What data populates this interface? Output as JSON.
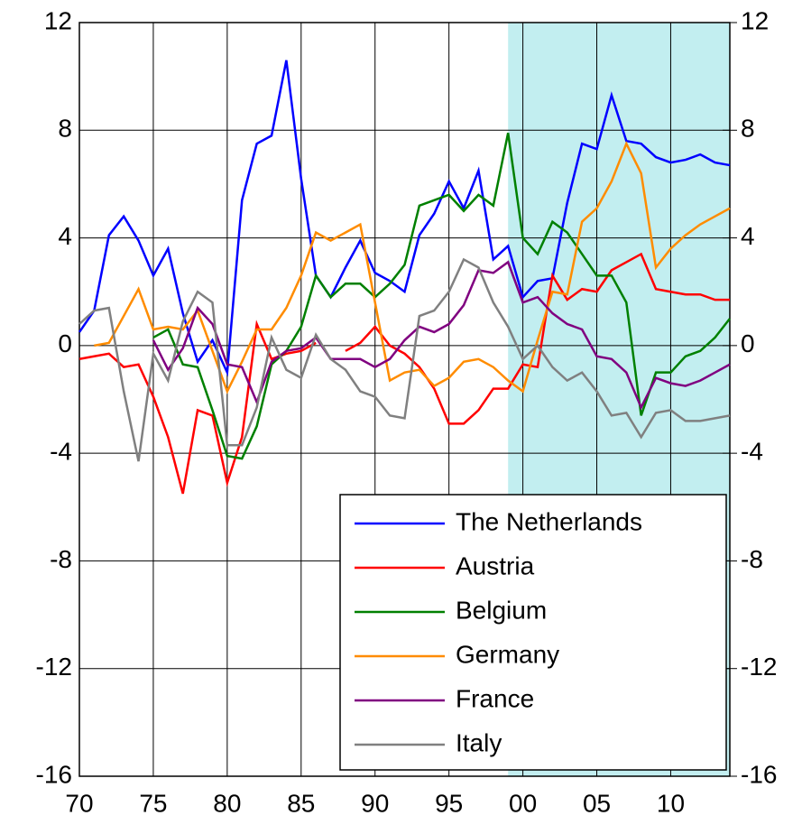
{
  "chart_data": {
    "type": "line",
    "x": [
      1970,
      1971,
      1972,
      1973,
      1974,
      1975,
      1976,
      1977,
      1978,
      1979,
      1980,
      1981,
      1982,
      1983,
      1984,
      1985,
      1986,
      1987,
      1988,
      1989,
      1990,
      1991,
      1992,
      1993,
      1994,
      1995,
      1996,
      1997,
      1998,
      1999,
      2000,
      2001,
      2002,
      2003,
      2004,
      2005,
      2006,
      2007,
      2008,
      2009,
      2010,
      2011,
      2012,
      2013,
      2014
    ],
    "series": [
      {
        "name": "The Netherlands",
        "color": "#0000ff",
        "values": [
          0.5,
          1.3,
          4.1,
          4.8,
          3.9,
          2.6,
          3.6,
          1.2,
          -0.6,
          0.2,
          -1.0,
          5.4,
          7.5,
          7.8,
          10.6,
          6.2,
          2.6,
          1.8,
          2.9,
          3.9,
          2.7,
          2.4,
          2.0,
          4.1,
          4.9,
          6.1,
          5.1,
          6.5,
          3.2,
          3.7,
          1.8,
          2.4,
          2.5,
          5.3,
          7.5,
          7.3,
          9.3,
          7.6,
          7.5,
          7.0,
          6.8,
          6.9,
          7.1,
          6.8,
          6.7
        ]
      },
      {
        "name": "Austria",
        "color": "#ff0000",
        "values": [
          -0.5,
          -0.4,
          -0.3,
          -0.8,
          -0.7,
          -1.9,
          -3.4,
          -5.5,
          -2.4,
          -2.6,
          -5.1,
          -3.4,
          0.8,
          -0.5,
          -0.3,
          -0.2,
          0.1,
          null,
          -0.2,
          0.1,
          0.7,
          0.0,
          -0.3,
          -0.8,
          -1.6,
          -2.9,
          -2.9,
          -2.4,
          -1.6,
          -1.6,
          -0.7,
          -0.8,
          2.6,
          1.7,
          2.1,
          2.0,
          2.8,
          3.1,
          3.4,
          2.1,
          2.0,
          1.9,
          1.9,
          1.7,
          1.7
        ]
      },
      {
        "name": "Belgium",
        "color": "#008000",
        "values": [
          null,
          null,
          null,
          null,
          null,
          0.3,
          0.6,
          -0.7,
          -0.8,
          -2.4,
          -4.1,
          -4.2,
          -3.0,
          -0.7,
          -0.2,
          0.7,
          2.6,
          1.8,
          2.3,
          2.3,
          1.8,
          2.3,
          3.0,
          5.2,
          5.4,
          5.6,
          5.0,
          5.6,
          5.2,
          7.9,
          4.0,
          3.4,
          4.6,
          4.2,
          3.4,
          2.6,
          2.6,
          1.6,
          -2.6,
          -1.0,
          -1.0,
          -0.4,
          -0.2,
          0.3,
          1.0
        ]
      },
      {
        "name": "Germany",
        "color": "#ff8c00",
        "values": [
          null,
          0.0,
          0.1,
          1.1,
          2.1,
          0.6,
          0.7,
          0.6,
          1.3,
          -0.2,
          -1.7,
          -0.6,
          0.6,
          0.6,
          1.4,
          2.6,
          4.2,
          3.9,
          4.2,
          4.5,
          1.6,
          -1.3,
          -1.0,
          -0.9,
          -1.5,
          -1.2,
          -0.6,
          -0.5,
          -0.8,
          -1.3,
          -1.7,
          0.2,
          2.0,
          1.9,
          4.6,
          5.1,
          6.1,
          7.5,
          6.4,
          2.9,
          3.6,
          4.1,
          4.5,
          4.8,
          5.1
        ]
      },
      {
        "name": "France",
        "color": "#800080",
        "values": [
          null,
          null,
          null,
          null,
          null,
          0.2,
          -0.9,
          -0.1,
          1.4,
          0.8,
          -0.7,
          -0.8,
          -2.1,
          -0.6,
          -0.2,
          -0.1,
          0.3,
          -0.5,
          -0.5,
          -0.5,
          -0.8,
          -0.5,
          0.2,
          0.7,
          0.5,
          0.8,
          1.5,
          2.8,
          2.7,
          3.1,
          1.6,
          1.8,
          1.2,
          0.8,
          0.6,
          -0.4,
          -0.5,
          -1.0,
          -2.3,
          -1.2,
          -1.4,
          -1.5,
          -1.3,
          -1.0,
          -0.7
        ]
      },
      {
        "name": "Italy",
        "color": "#808080",
        "values": [
          0.8,
          1.3,
          1.4,
          -1.7,
          -4.3,
          -0.3,
          -1.3,
          0.9,
          2.0,
          1.6,
          -3.7,
          -3.7,
          -2.3,
          0.3,
          -0.9,
          -1.2,
          0.4,
          -0.5,
          -0.9,
          -1.7,
          -1.9,
          -2.6,
          -2.7,
          1.1,
          1.3,
          2.0,
          3.2,
          2.9,
          1.6,
          0.7,
          -0.5,
          0.0,
          -0.8,
          -1.3,
          -1.0,
          -1.7,
          -2.6,
          -2.5,
          -3.4,
          -2.5,
          -2.4,
          -2.8,
          -2.8,
          -2.7,
          -2.6
        ]
      }
    ],
    "xlim": [
      1970,
      2014
    ],
    "xticks": [
      {
        "value": 1970,
        "label": "70"
      },
      {
        "value": 1975,
        "label": "75"
      },
      {
        "value": 1980,
        "label": "80"
      },
      {
        "value": 1985,
        "label": "85"
      },
      {
        "value": 1990,
        "label": "90"
      },
      {
        "value": 1995,
        "label": "95"
      },
      {
        "value": 2000,
        "label": "00"
      },
      {
        "value": 2005,
        "label": "05"
      },
      {
        "value": 2010,
        "label": "10"
      }
    ],
    "ylim": [
      -16,
      12
    ],
    "yticks": [
      -16,
      -12,
      -8,
      -4,
      0,
      4,
      8,
      12
    ],
    "y2lim": [
      -16,
      12
    ],
    "y2ticks": [
      -16,
      -12,
      -8,
      -4,
      0,
      4,
      8,
      12
    ],
    "shaded_xrange": [
      1999,
      2014
    ],
    "shade_color": "#c2eef0",
    "grid": true,
    "legend_position": "lower right"
  }
}
